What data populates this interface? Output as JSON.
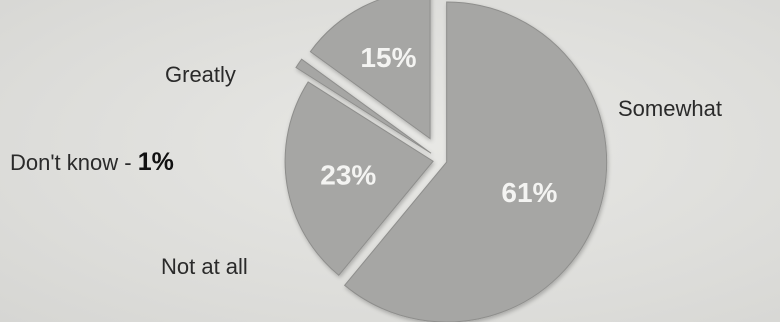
{
  "chart_data": {
    "type": "pie",
    "slices": [
      {
        "label": "Somewhat",
        "value": 61,
        "value_label": "61%"
      },
      {
        "label": "Not at all",
        "value": 23,
        "value_label": "23%"
      },
      {
        "label": "Don't know - ",
        "value": 1,
        "value_label": "1%"
      },
      {
        "label": "Greatly",
        "value": 15,
        "value_label": "15%"
      }
    ],
    "colors": {
      "slice_fill": "#a6a6a4",
      "slice_edge": "#8e8e8c",
      "value_text": "#f4f4f2",
      "label_text": "#2a2a2a"
    }
  }
}
